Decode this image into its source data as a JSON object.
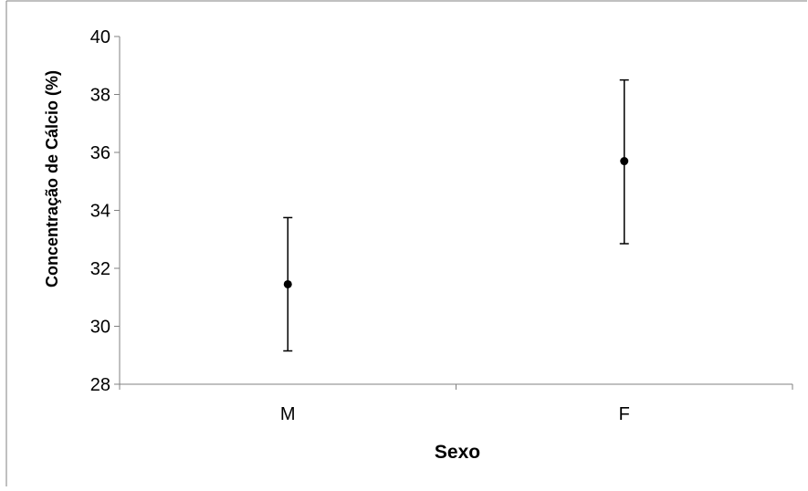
{
  "chart_data": {
    "type": "scatter",
    "categories": [
      "M",
      "F"
    ],
    "series": [
      {
        "values": [
          31.45,
          35.7
        ],
        "error_low": [
          29.15,
          32.85
        ],
        "error_high": [
          33.75,
          38.5
        ]
      }
    ],
    "xlabel": "Sexo",
    "ylabel": "Concentração de Cálcio (%)",
    "ylim": [
      28,
      40
    ],
    "yticks": [
      28,
      30,
      32,
      34,
      36,
      38,
      40
    ],
    "ytick_labels": [
      "28",
      "30",
      "32",
      "34",
      "36",
      "38",
      "40"
    ],
    "grid": false,
    "legend": "none",
    "colors": {
      "marker": "#000000",
      "axis": "#808080",
      "frame": "#808080"
    }
  }
}
